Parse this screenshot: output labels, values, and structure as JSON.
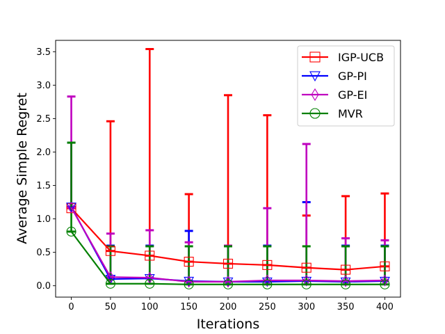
{
  "chart_data": {
    "type": "line",
    "title": "",
    "xlabel": "Iterations",
    "ylabel": "Average Simple Regret",
    "x": [
      0,
      50,
      100,
      150,
      200,
      250,
      300,
      350,
      400
    ],
    "xlim": [
      -20,
      420
    ],
    "ylim": [
      -0.17,
      3.67
    ],
    "xticks": [
      0,
      50,
      100,
      150,
      200,
      250,
      300,
      350,
      400
    ],
    "yticks": [
      0.0,
      0.5,
      1.0,
      1.5,
      2.0,
      2.5,
      3.0,
      3.5
    ],
    "ytick_labels": [
      "0.0",
      "0.5",
      "1.0",
      "1.5",
      "2.0",
      "2.5",
      "3.0",
      "3.5"
    ],
    "legend_position": "top-right",
    "grid": false,
    "series": [
      {
        "name": "IGP-UCB",
        "color": "#ff0000",
        "marker": "square",
        "values": [
          1.16,
          0.52,
          0.45,
          0.36,
          0.33,
          0.31,
          0.27,
          0.24,
          0.29
        ],
        "err_low": [
          0.0,
          0.0,
          0.0,
          0.0,
          0.0,
          0.0,
          0.0,
          0.0,
          0.0
        ],
        "err_high": [
          2.14,
          2.46,
          3.54,
          1.37,
          2.85,
          2.55,
          1.05,
          1.34,
          1.38
        ]
      },
      {
        "name": "GP-PI",
        "color": "#0000ff",
        "marker": "triangle-down",
        "values": [
          1.18,
          0.1,
          0.11,
          0.07,
          0.06,
          0.06,
          0.07,
          0.06,
          0.07
        ],
        "err_low": [
          0.0,
          0.0,
          0.0,
          0.0,
          0.0,
          0.0,
          0.0,
          0.0,
          0.0
        ],
        "err_high": [
          2.14,
          0.6,
          0.6,
          0.82,
          0.6,
          0.6,
          1.25,
          0.6,
          0.6
        ]
      },
      {
        "name": "GP-EI",
        "color": "#bf00bf",
        "marker": "diamond",
        "values": [
          1.17,
          0.13,
          0.12,
          0.06,
          0.06,
          0.08,
          0.08,
          0.07,
          0.08
        ],
        "err_low": [
          0.0,
          0.0,
          0.0,
          0.0,
          0.0,
          0.0,
          0.0,
          0.0,
          0.0
        ],
        "err_high": [
          2.83,
          0.78,
          0.83,
          0.65,
          0.6,
          1.16,
          2.12,
          0.71,
          0.68
        ]
      },
      {
        "name": "MVR",
        "color": "#008000",
        "marker": "circle",
        "values": [
          0.81,
          0.03,
          0.03,
          0.02,
          0.02,
          0.02,
          0.02,
          0.02,
          0.02
        ],
        "err_low": [
          0.0,
          0.0,
          0.0,
          0.0,
          0.0,
          0.0,
          0.0,
          0.0,
          0.0
        ],
        "err_high": [
          2.14,
          0.59,
          0.59,
          0.59,
          0.59,
          0.59,
          0.59,
          0.59,
          0.59
        ]
      }
    ]
  }
}
